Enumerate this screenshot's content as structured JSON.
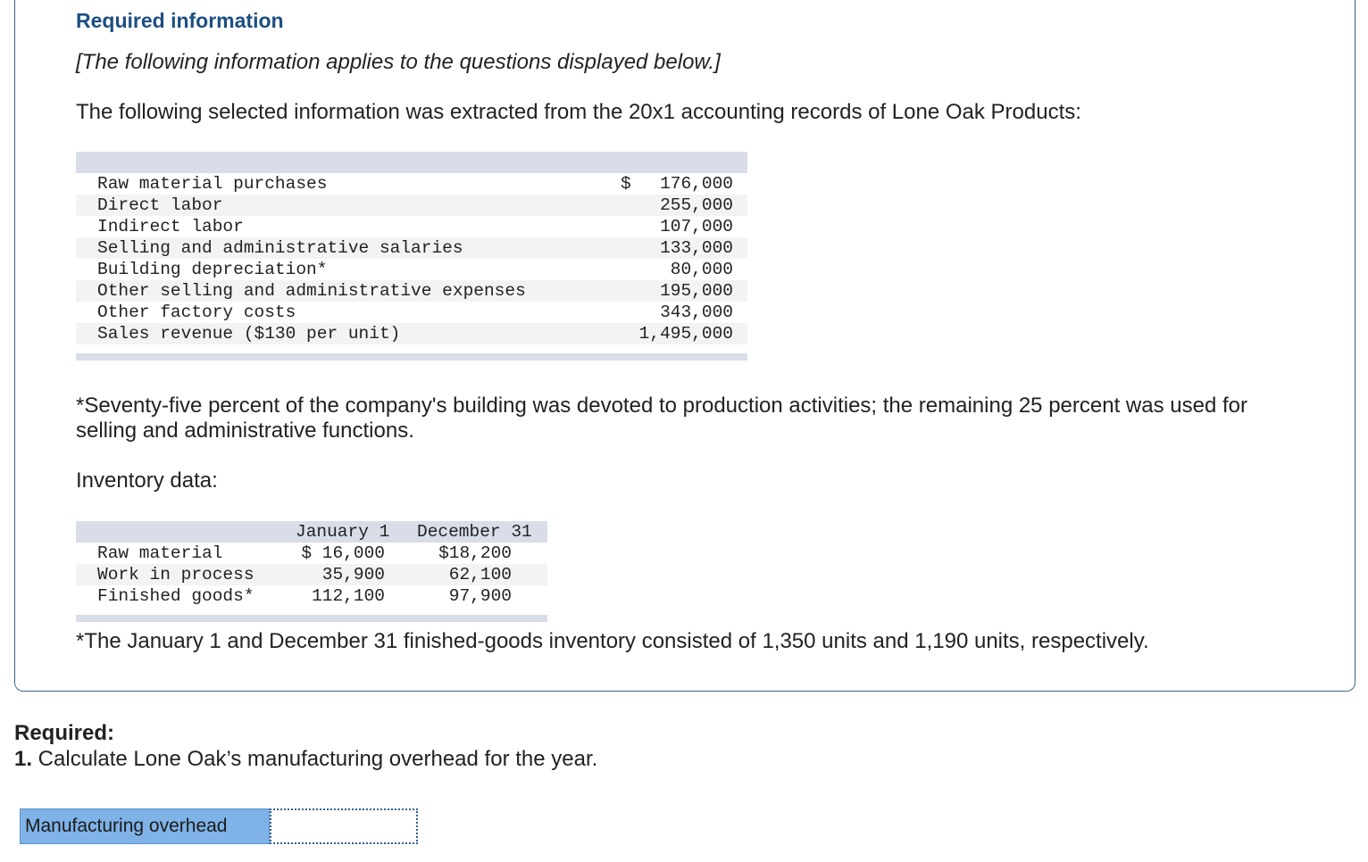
{
  "header": {
    "title": "Required information",
    "applies_note": "[The following information applies to the questions displayed below.]"
  },
  "intro_text": "The following selected information was extracted from the 20x1 accounting records of Lone Oak Products:",
  "cost_table": {
    "rows": [
      {
        "label": "Raw material purchases",
        "dollar": "$",
        "amount": "176,000"
      },
      {
        "label": "Direct labor",
        "dollar": "",
        "amount": "255,000"
      },
      {
        "label": "Indirect labor",
        "dollar": "",
        "amount": "107,000"
      },
      {
        "label": "Selling and administrative salaries",
        "dollar": "",
        "amount": "133,000"
      },
      {
        "label": "Building depreciation*",
        "dollar": "",
        "amount": "80,000"
      },
      {
        "label": "Other selling and administrative expenses",
        "dollar": "",
        "amount": "195,000"
      },
      {
        "label": "Other factory costs",
        "dollar": "",
        "amount": "343,000"
      },
      {
        "label": "Sales revenue ($130 per unit)",
        "dollar": "",
        "amount": "1,495,000"
      }
    ]
  },
  "building_footnote": "*Seventy-five percent of the company's building was devoted to production activities; the remaining 25 percent was used for selling and administrative functions.",
  "inventory": {
    "heading": "Inventory data:",
    "columns": [
      "January 1",
      "December 31"
    ],
    "rows": [
      {
        "label": "Raw material",
        "jan": "$ 16,000",
        "dec": "$18,200"
      },
      {
        "label": "Work in process",
        "jan": "35,900",
        "dec": "62,100"
      },
      {
        "label": "Finished goods*",
        "jan": "112,100",
        "dec": "97,900"
      }
    ],
    "footnote": "*The January 1 and December 31 finished-goods inventory consisted of 1,350 units and 1,190 units, respectively."
  },
  "required": {
    "label": "Required:",
    "question_number": "1.",
    "question_text": " Calculate Lone Oak’s manufacturing overhead for the year."
  },
  "answer": {
    "label": "Manufacturing overhead",
    "value": ""
  }
}
